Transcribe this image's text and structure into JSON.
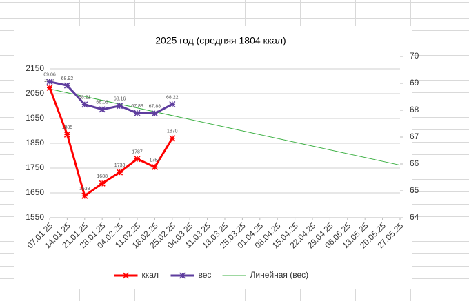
{
  "chart_data": {
    "type": "line",
    "title": "2025 год (средняя 1804 ккал)",
    "categories": [
      "07.01.25",
      "14.01.25",
      "21.01.25",
      "28.01.25",
      "04.02.25",
      "11.02.25",
      "18.02.25",
      "25.02.25",
      "04.03.25",
      "11.03.25",
      "18.03.25",
      "25.03.25",
      "01.04.25",
      "08.04.25",
      "15.04.25",
      "22.04.25",
      "29.04.25",
      "06.05.25",
      "13.05.25",
      "20.05.25",
      "27.05.25"
    ],
    "series": [
      {
        "name": "ккал",
        "color": "#ff0000",
        "values": [
          2074,
          1885,
          1638,
          1688,
          1733,
          1787,
          1754,
          1870,
          null,
          null,
          null,
          null,
          null,
          null,
          null,
          null,
          null,
          null,
          null,
          null,
          null
        ]
      },
      {
        "name": "вес",
        "color": "#5e3d9e",
        "axis": "y2",
        "values": [
          69.06,
          68.92,
          68.21,
          68.03,
          68.16,
          67.89,
          67.88,
          68.22,
          null,
          null,
          null,
          null,
          null,
          null,
          null,
          null,
          null,
          null,
          null,
          null,
          null
        ]
      }
    ],
    "trendline": {
      "name": "Линейная (вес)",
      "color": "#3cb043",
      "series": 1
    },
    "ylim": [
      1550,
      2200
    ],
    "yticks": [
      1550,
      1650,
      1750,
      1850,
      1950,
      2050,
      2150
    ],
    "y2lim": [
      64,
      70
    ],
    "y2ticks": [
      64,
      65,
      66,
      67,
      68,
      69,
      70
    ],
    "grid": true,
    "legend": "bottom"
  }
}
